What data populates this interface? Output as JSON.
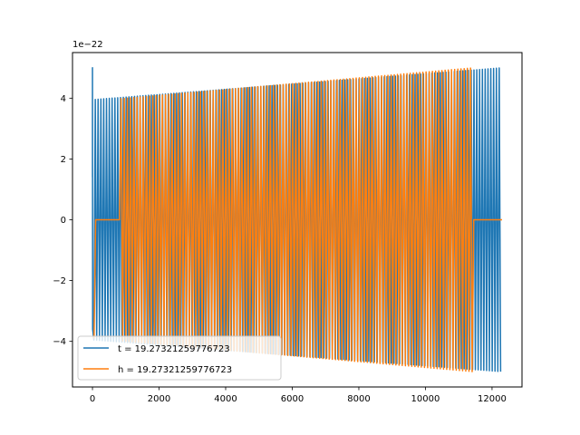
{
  "chart_data": {
    "type": "line",
    "title": "",
    "xlabel": "",
    "ylabel": "",
    "y_offset_label": "1e−22",
    "xlim": [
      -600,
      12900
    ],
    "ylim": [
      -5.5,
      5.5
    ],
    "x_ticks": [
      0,
      2000,
      4000,
      6000,
      8000,
      10000,
      12000
    ],
    "x_tick_labels": [
      "0",
      "2000",
      "4000",
      "6000",
      "8000",
      "10000",
      "12000"
    ],
    "y_ticks": [
      -4,
      -2,
      0,
      2,
      4
    ],
    "y_tick_labels": [
      "−4",
      "−2",
      "0",
      "2",
      "4"
    ],
    "grid": false,
    "legend_position": "lower-left",
    "series": [
      {
        "name": "t = 19.27321259776723",
        "color": "#1f77b4",
        "x_start": 0,
        "x_end": 12300,
        "amplitude_start": 3.95,
        "amplitude_end": 5.0,
        "initial_spike": 5.0,
        "cycles": 146
      },
      {
        "name": "h = 19.27321259776723",
        "color": "#ff7f0e",
        "x_start": 0,
        "x_end": 11450,
        "amplitude_start": 3.9,
        "amplitude_end": 5.0,
        "flat_segments": [
          [
            60,
            850
          ],
          [
            11450,
            12300
          ]
        ],
        "cycles": 120
      }
    ]
  }
}
